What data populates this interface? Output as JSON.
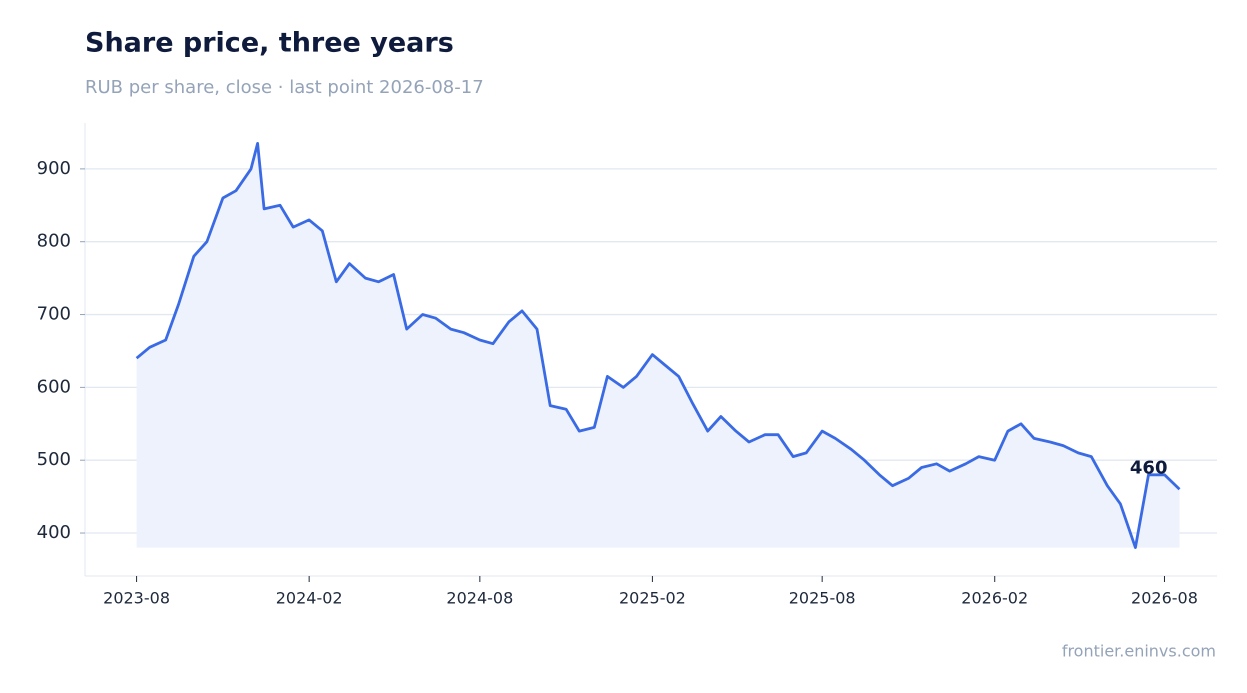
{
  "chart_data": {
    "type": "line",
    "title": "Share price, three years",
    "subtitle": "RUB per share, close · last point 2026-08-17",
    "source": "frontier.eninvs.com",
    "x": [
      "2023-08-01",
      "2023-08-15",
      "2023-09-01",
      "2023-09-15",
      "2023-10-01",
      "2023-10-15",
      "2023-11-01",
      "2023-11-15",
      "2023-12-01",
      "2023-12-08",
      "2023-12-15",
      "2024-01-01",
      "2024-01-15",
      "2024-02-01",
      "2024-02-15",
      "2024-03-01",
      "2024-03-15",
      "2024-04-01",
      "2024-04-15",
      "2024-05-01",
      "2024-05-15",
      "2024-06-01",
      "2024-06-15",
      "2024-07-01",
      "2024-07-15",
      "2024-08-01",
      "2024-08-15",
      "2024-09-01",
      "2024-09-15",
      "2024-10-01",
      "2024-10-15",
      "2024-11-01",
      "2024-11-15",
      "2024-12-01",
      "2024-12-15",
      "2025-01-01",
      "2025-01-15",
      "2025-02-01",
      "2025-02-15",
      "2025-03-01",
      "2025-03-15",
      "2025-04-01",
      "2025-04-15",
      "2025-05-01",
      "2025-05-15",
      "2025-06-01",
      "2025-06-15",
      "2025-07-01",
      "2025-07-15",
      "2025-08-01",
      "2025-08-15",
      "2025-09-01",
      "2025-09-15",
      "2025-10-01",
      "2025-10-15",
      "2025-11-01",
      "2025-11-15",
      "2025-12-01",
      "2025-12-15",
      "2026-01-01",
      "2026-01-15",
      "2026-02-01",
      "2026-02-15",
      "2026-03-01",
      "2026-03-15",
      "2026-04-01",
      "2026-04-15",
      "2026-05-01",
      "2026-05-15",
      "2026-06-01",
      "2026-06-15",
      "2026-07-01",
      "2026-07-15",
      "2026-08-01",
      "2026-08-17"
    ],
    "values": [
      640,
      655,
      665,
      715,
      780,
      800,
      860,
      870,
      900,
      935,
      845,
      850,
      820,
      830,
      815,
      745,
      770,
      750,
      745,
      755,
      680,
      700,
      695,
      680,
      675,
      665,
      660,
      690,
      705,
      680,
      575,
      570,
      540,
      545,
      615,
      600,
      615,
      645,
      630,
      615,
      580,
      540,
      560,
      540,
      525,
      535,
      535,
      505,
      510,
      540,
      530,
      515,
      500,
      480,
      465,
      475,
      490,
      495,
      485,
      495,
      505,
      500,
      540,
      550,
      530,
      525,
      520,
      510,
      505,
      465,
      440,
      380,
      480,
      480,
      460
    ],
    "color": "#3a6be4",
    "fill": "#edf2fd",
    "xlim": [
      "2023-06-07",
      "2026-09-26"
    ],
    "xticks": [
      "2023-08",
      "2024-02",
      "2024-08",
      "2025-02",
      "2025-08",
      "2026-02",
      "2026-08"
    ],
    "ylim": [
      341,
      963
    ],
    "yticks": [
      400,
      500,
      600,
      700,
      800,
      900
    ],
    "grid": true
  }
}
